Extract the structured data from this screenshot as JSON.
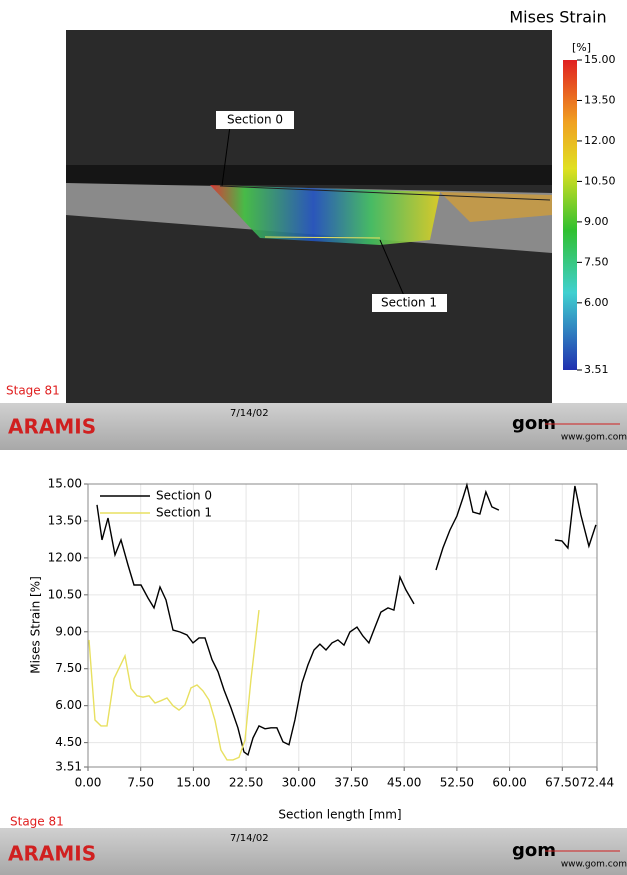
{
  "strain_map": {
    "title": "Mises Strain",
    "unit": "[%]",
    "colorbar_lim": [
      3.51,
      15
    ],
    "colorbar_ticks": [
      {
        "value": 15,
        "label": "15.00"
      },
      {
        "value": 13.5,
        "label": "13.50"
      },
      {
        "value": 12,
        "label": "12.00"
      },
      {
        "value": 10.5,
        "label": "10.50"
      },
      {
        "value": 9,
        "label": "9.00"
      },
      {
        "value": 7.5,
        "label": "7.50"
      },
      {
        "value": 6,
        "label": "6.00"
      },
      3.51
    ],
    "section_labels": [
      "Section 0",
      "Section 1"
    ],
    "stage": "Stage 81"
  },
  "footer_top": {
    "brand": "ARAMIS",
    "date": "7/14/02",
    "logo": "gom",
    "url": "www.gom.com"
  },
  "chart_data": {
    "type": "line",
    "xlabel": "Section length [mm]",
    "ylabel": "Mises Strain [%]",
    "xlim": [
      0,
      72.44
    ],
    "ylim": [
      3.51,
      15
    ],
    "xticks": [
      {
        "value": 0,
        "label": "0.00"
      },
      {
        "value": 7.5,
        "label": "7.50"
      },
      {
        "value": 15,
        "label": "15.00"
      },
      {
        "value": 22.5,
        "label": "22.50"
      },
      {
        "value": 30,
        "label": "30.00"
      },
      {
        "value": 37.5,
        "label": "37.50"
      },
      {
        "value": 45,
        "label": "45.00"
      },
      {
        "value": 52.5,
        "label": "52.50"
      },
      {
        "value": 60,
        "label": "60.00"
      },
      {
        "value": 67.5,
        "label": "67.50"
      },
      72.44
    ],
    "yticks": [
      3.51,
      {
        "value": 4.5,
        "label": "4.50"
      },
      {
        "value": 6,
        "label": "6.00"
      },
      {
        "value": 7.5,
        "label": "7.50"
      },
      {
        "value": 9,
        "label": "9.00"
      },
      {
        "value": 10.5,
        "label": "10.50"
      },
      {
        "value": 12,
        "label": "12.00"
      },
      {
        "value": 13.5,
        "label": "13.50"
      },
      {
        "value": 15,
        "label": "15.00"
      }
    ],
    "grid": true,
    "legend": "upper left",
    "series": [
      {
        "name": "Section 0",
        "color": "#000000",
        "x": [
          1.28,
          1.99,
          2.85,
          3.84,
          4.7,
          5.69,
          6.55,
          7.54,
          8.54,
          9.39,
          10.25,
          11.1,
          12.1,
          13.09,
          14.09,
          14.94,
          15.8,
          16.65,
          17.65,
          18.5,
          19.35,
          20.35,
          21.34,
          22.2,
          22.77,
          23.48,
          24.33,
          25.19,
          26.04,
          26.89,
          27.75,
          28.6,
          29.45,
          30.45,
          31.3,
          32.16,
          33.01,
          33.87,
          34.72,
          35.57,
          36.43,
          37.28,
          38.28,
          39.13,
          39.98,
          40.84,
          41.69,
          42.69,
          43.54,
          44.4,
          45.25,
          46.39,
          null,
          49.52,
          50.51,
          51.51,
          52.5,
          53.36,
          53.93,
          54.78,
          55.78,
          56.63,
          57.48,
          58.48,
          null,
          66.45,
          67.44,
          68.3,
          69.29,
          70.15,
          71.29,
          72.28
        ],
        "values": [
          14.15,
          12.73,
          13.62,
          12.12,
          12.73,
          11.71,
          10.9,
          10.9,
          10.37,
          9.97,
          10.82,
          10.29,
          9.07,
          8.99,
          8.87,
          8.55,
          8.75,
          8.75,
          7.87,
          7.38,
          6.64,
          5.91,
          5.1,
          4.12,
          4.0,
          4.69,
          5.18,
          5.06,
          5.1,
          5.1,
          4.53,
          4.41,
          5.42,
          6.92,
          7.65,
          8.26,
          8.5,
          8.26,
          8.55,
          8.67,
          8.46,
          8.99,
          9.19,
          8.83,
          8.55,
          9.19,
          9.8,
          9.97,
          9.88,
          11.22,
          10.7,
          10.13,
          null,
          11.51,
          12.4,
          13.13,
          13.7,
          14.43,
          14.96,
          13.86,
          13.78,
          14.68,
          14.07,
          13.94,
          null,
          12.73,
          12.69,
          12.4,
          14.92,
          13.74,
          12.48,
          13.34
        ]
      },
      {
        "name": "Section 1",
        "color": "#e8e060",
        "x": [
          0.14,
          1.0,
          1.85,
          2.7,
          3.7,
          5.27,
          6.12,
          6.97,
          7.83,
          8.68,
          9.53,
          10.39,
          11.24,
          12.1,
          12.95,
          13.8,
          14.66,
          15.51,
          16.36,
          17.22,
          18.07,
          18.92,
          19.78,
          20.63,
          21.49,
          22.34,
          23.19,
          24.33
        ],
        "values": [
          8.67,
          5.42,
          5.18,
          5.18,
          7.1,
          8.02,
          6.7,
          6.4,
          6.35,
          6.4,
          6.11,
          6.2,
          6.31,
          6.0,
          5.82,
          6.03,
          6.72,
          6.84,
          6.6,
          6.23,
          5.4,
          4.2,
          3.8,
          3.8,
          3.9,
          4.6,
          7.04,
          9.88
        ]
      }
    ]
  },
  "footer_bottom": {
    "stage": "Stage 81",
    "brand": "ARAMIS",
    "date": "7/14/02",
    "logo": "gom",
    "url": "www.gom.com"
  }
}
